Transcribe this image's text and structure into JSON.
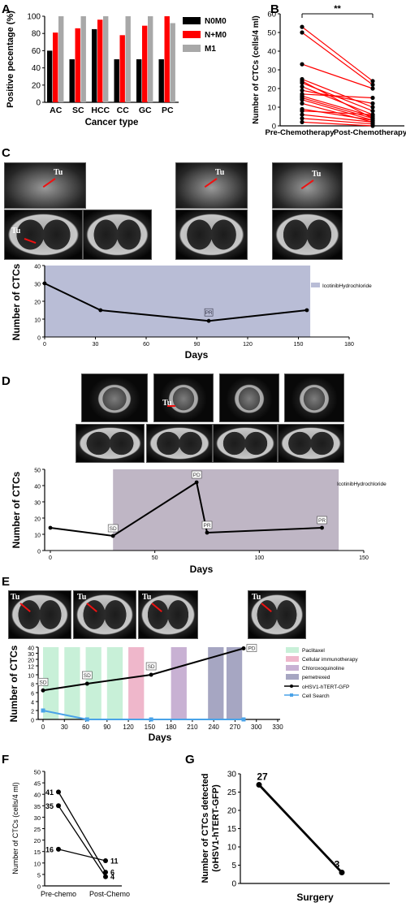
{
  "panels": {
    "A": "A",
    "B": "B",
    "C": "C",
    "D": "D",
    "E": "E",
    "F": "F",
    "G": "G"
  },
  "image_labels": {
    "tumor": "Tu"
  },
  "chart_data": [
    {
      "id": "A",
      "type": "bar",
      "xlabel": "Cancer type",
      "ylabel": "Positive pecentage (%)",
      "categories": [
        "AC",
        "SC",
        "HCC",
        "CC",
        "GC",
        "PC"
      ],
      "ylim": [
        0,
        100
      ],
      "yticks": [
        "0",
        "20",
        "40",
        "60",
        "80",
        "100"
      ],
      "legend_position": "top-right",
      "series": [
        {
          "name": "N0M0",
          "color": "#000000",
          "values": [
            60,
            50,
            85,
            50,
            50,
            50
          ]
        },
        {
          "name": "N+M0",
          "color": "#ff0000",
          "values": [
            81,
            86,
            96,
            78,
            89,
            100
          ]
        },
        {
          "name": "M1",
          "color": "#a8a8a8",
          "values": [
            100,
            100,
            100,
            100,
            100,
            92
          ]
        }
      ]
    },
    {
      "id": "B",
      "type": "scatter",
      "ylabel": "Number of CTCs (cells/4 ml)",
      "categories": [
        "Pre-Chemotherapy",
        "Post-Chemotherapy"
      ],
      "ylim": [
        0,
        60
      ],
      "yticks": [
        "0",
        "10",
        "20",
        "30",
        "40",
        "50",
        "60"
      ],
      "significance": "**",
      "pairs": [
        [
          53,
          24
        ],
        [
          50,
          22
        ],
        [
          33,
          20
        ],
        [
          25,
          10
        ],
        [
          23,
          8
        ],
        [
          21,
          6
        ],
        [
          19,
          12
        ],
        [
          16,
          5
        ],
        [
          15,
          4
        ],
        [
          14,
          3
        ],
        [
          12,
          2
        ],
        [
          9,
          3
        ],
        [
          8,
          6
        ],
        [
          6,
          2
        ],
        [
          4,
          1
        ],
        [
          2,
          0
        ],
        [
          17,
          15
        ],
        [
          24,
          4
        ]
      ]
    },
    {
      "id": "C",
      "type": "line",
      "xlabel": "Days",
      "ylabel": "Number of CTCs",
      "xlim": [
        0,
        180
      ],
      "ylim": [
        0,
        40
      ],
      "xticks": [
        "0",
        "30",
        "60",
        "90",
        "120",
        "150",
        "180"
      ],
      "yticks": [
        "0",
        "10",
        "20",
        "30",
        "40"
      ],
      "x": [
        0,
        33,
        97,
        155
      ],
      "values": [
        30,
        15,
        9,
        15
      ],
      "point_labels": [
        {
          "index": 2,
          "text": "PR"
        }
      ],
      "shaded": [
        {
          "name": "IcotinibHydrochloride",
          "from": 0,
          "to": 157,
          "color": "#b9bdd6"
        }
      ],
      "legend_position": "right"
    },
    {
      "id": "D",
      "type": "line",
      "xlabel": "Days",
      "ylabel": "Number of CTCs",
      "xlim": [
        0,
        150
      ],
      "ylim": [
        0,
        50
      ],
      "xticks": [
        "0",
        "50",
        "100",
        "150"
      ],
      "yticks": [
        "0",
        "10",
        "20",
        "30",
        "40",
        "50"
      ],
      "x": [
        0,
        30,
        70,
        75,
        130
      ],
      "values": [
        14,
        9,
        42,
        11,
        14
      ],
      "point_labels": [
        {
          "index": 1,
          "text": "SD"
        },
        {
          "index": 2,
          "text": "PD"
        },
        {
          "index": 3,
          "text": "PR"
        },
        {
          "index": 4,
          "text": "PR"
        }
      ],
      "shaded": [
        {
          "name": "IcotinibHydrochloride",
          "from": 30,
          "to": 138,
          "color": "#bfb6c5"
        }
      ],
      "legend_position": "right"
    },
    {
      "id": "E",
      "type": "line",
      "xlabel": "Days",
      "ylabel": "Number of CTCs",
      "xlim": [
        0,
        330
      ],
      "xticks": [
        "0",
        "30",
        "60",
        "90",
        "120",
        "150",
        "180",
        "210",
        "240",
        "270",
        "300",
        "330"
      ],
      "yticks": [
        "0",
        "2",
        "4",
        "6",
        "8",
        "10",
        "12",
        "20",
        "30",
        "40"
      ],
      "series": [
        {
          "name": "oHSV1-hTERT-GFP",
          "color": "#000000",
          "x": [
            0,
            62,
            152,
            282
          ],
          "values": [
            6.5,
            8,
            10,
            38
          ]
        },
        {
          "name": "Cell Search",
          "color": "#4aa3e8",
          "x": [
            0,
            62,
            152,
            282
          ],
          "values": [
            2,
            0,
            0,
            0
          ]
        }
      ],
      "point_labels": [
        {
          "series": 0,
          "index": 0,
          "text": "SD"
        },
        {
          "series": 0,
          "index": 1,
          "text": "SD"
        },
        {
          "series": 0,
          "index": 2,
          "text": "SD"
        },
        {
          "series": 0,
          "index": 3,
          "text": "PD"
        }
      ],
      "shaded": [
        {
          "name": "Paclitaxel",
          "color": "#c8f0d8",
          "ranges": [
            [
              0,
              22
            ],
            [
              30,
              52
            ],
            [
              60,
              82
            ],
            [
              90,
              112
            ]
          ]
        },
        {
          "name": "Cellular immunotherapy",
          "color": "#efb7cb",
          "ranges": [
            [
              120,
              142
            ]
          ]
        },
        {
          "name": "Chloroxoquinoline",
          "color": "#c8b1d3",
          "ranges": [
            [
              180,
              202
            ]
          ]
        },
        {
          "name": "pemetrexed",
          "color": "#a6a6c2",
          "ranges": [
            [
              232,
              254
            ],
            [
              258,
              280
            ]
          ]
        }
      ],
      "legend_position": "right"
    },
    {
      "id": "F",
      "type": "line",
      "ylabel": "Number of CTCs (cells/4 ml)",
      "categories": [
        "Pre-chemo",
        "Post-Chemo"
      ],
      "ylim": [
        0,
        50
      ],
      "yticks": [
        "0",
        "5",
        "10",
        "15",
        "20",
        "25",
        "30",
        "35",
        "40",
        "45",
        "50"
      ],
      "series": [
        {
          "values": [
            41,
            6
          ],
          "labels": [
            "41",
            "6"
          ]
        },
        {
          "values": [
            35,
            4
          ],
          "labels": [
            "35",
            "4"
          ]
        },
        {
          "values": [
            16,
            11
          ],
          "labels": [
            "16",
            "11"
          ]
        }
      ]
    },
    {
      "id": "G",
      "type": "line",
      "xlabel": "Surgery",
      "ylabel": "Number of CTCs detected (oHSV1-hTERT-GFP)",
      "ylim": [
        0,
        30
      ],
      "yticks": [
        "0",
        "5",
        "10",
        "15",
        "20",
        "25",
        "30"
      ],
      "series": [
        {
          "values": [
            27,
            3
          ],
          "labels": [
            "27",
            "3"
          ]
        }
      ]
    }
  ]
}
